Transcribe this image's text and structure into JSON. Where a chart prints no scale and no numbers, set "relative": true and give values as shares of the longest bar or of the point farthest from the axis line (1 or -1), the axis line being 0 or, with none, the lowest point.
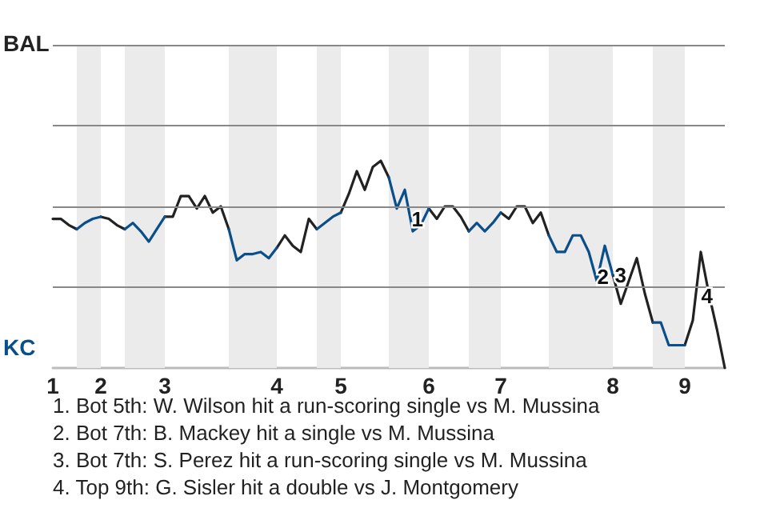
{
  "chart_data": {
    "type": "line",
    "relative": true,
    "categories": [
      "1",
      null,
      null,
      null,
      null,
      null,
      "2",
      null,
      null,
      null,
      null,
      null,
      null,
      null,
      "3",
      null,
      null,
      null,
      null,
      null,
      null,
      null,
      null,
      null,
      null,
      null,
      null,
      null,
      "4",
      null,
      null,
      null,
      null,
      null,
      null,
      null,
      "5",
      null,
      null,
      null,
      null,
      null,
      null,
      null,
      null,
      null,
      null,
      "6",
      null,
      null,
      null,
      null,
      null,
      null,
      null,
      null,
      "7",
      null,
      null,
      null,
      null,
      null,
      null,
      null,
      null,
      null,
      null,
      null,
      null,
      null,
      "8",
      null,
      null,
      null,
      null,
      null,
      null,
      null,
      null,
      "9",
      null,
      null,
      null,
      null,
      null
    ],
    "series": [
      {
        "color": "#222222",
        "values": [
          0.72,
          0.72,
          0.69,
          0.67,
          null,
          null,
          0.73,
          0.72,
          0.69,
          0.67,
          null,
          null,
          null,
          null,
          0.73,
          0.73,
          0.83,
          0.83,
          0.77,
          0.83,
          0.75,
          0.78,
          0.67,
          null,
          null,
          null,
          null,
          null,
          0.58,
          0.64,
          0.59,
          0.56,
          0.72,
          0.67,
          null,
          null,
          0.75,
          0.84,
          0.95,
          0.86,
          0.97,
          1,
          0.92,
          null,
          null,
          null,
          null,
          0.77,
          0.72,
          0.78,
          0.78,
          0.73,
          0.66,
          null,
          null,
          null,
          0.75,
          0.72,
          0.78,
          0.78,
          0.7,
          0.75,
          0.64,
          null,
          null,
          null,
          null,
          null,
          null,
          null,
          0.45,
          0.31,
          0.42,
          0.53,
          0.36,
          0.22,
          null,
          null,
          null,
          0.11,
          0.23,
          0.56,
          0.36,
          0.19,
          0
        ]
      },
      {
        "color": "#0b4f8a",
        "values": [
          null,
          null,
          null,
          0.67,
          0.7,
          0.72,
          0.73,
          null,
          null,
          0.67,
          0.7,
          0.66,
          0.61,
          0.67,
          0.73,
          null,
          null,
          null,
          null,
          null,
          null,
          null,
          0.67,
          0.52,
          0.55,
          0.55,
          0.56,
          0.53,
          0.58,
          null,
          null,
          null,
          null,
          0.67,
          0.7,
          0.73,
          0.75,
          null,
          null,
          null,
          null,
          null,
          0.92,
          0.77,
          0.86,
          0.66,
          0.69,
          0.77,
          null,
          null,
          null,
          null,
          0.66,
          0.7,
          0.66,
          0.7,
          0.75,
          null,
          null,
          null,
          null,
          null,
          0.64,
          0.56,
          0.56,
          0.64,
          0.64,
          0.56,
          0.42,
          0.59,
          0.45,
          null,
          null,
          null,
          null,
          0.22,
          0.22,
          0.11,
          0.11,
          0.11,
          null,
          null,
          null,
          null,
          null
        ]
      }
    ],
    "ref_lines": [
      {
        "axis": "y",
        "value": 0.39,
        "color": "#888888",
        "line_style": "solid"
      },
      {
        "axis": "y",
        "value": 0.78,
        "color": "#888888",
        "line_style": "solid"
      },
      {
        "axis": "y",
        "value": 1.17,
        "color": "#888888",
        "line_style": "solid"
      },
      {
        "axis": "y",
        "value": 1.56,
        "color": "#888888",
        "line_style": "solid"
      }
    ],
    "annotations": [
      "BAL",
      "KC",
      "1",
      "2",
      "3",
      "4",
      "1. Bot 5th: W. Wilson hit a run-scoring single vs M. Mussina",
      "2. Bot 7th: B. Mackey hit a single vs M. Mussina",
      "3. Bot 7th: S. Perez hit a run-scoring single vs M. Mussina",
      "4. Top 9th: G. Sisler hit a double vs J. Montgomery"
    ],
    "marker": "none",
    "line_style": "solid"
  }
}
